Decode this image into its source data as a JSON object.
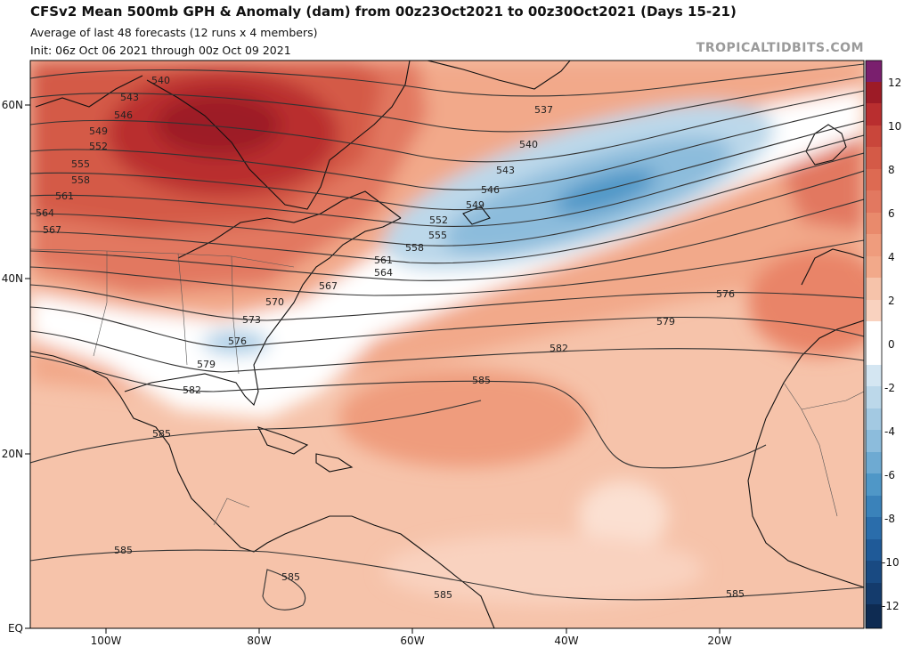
{
  "header": {
    "title": "CFSv2 Mean 500mb GPH & Anomaly (dam) from 00z23Oct2021 to 00z30Oct2021 (Days 15-21)",
    "line2": "Average of last 48 forecasts (12 runs x 4 members)",
    "line3": "Init: 06z Oct 06 2021 through 00z Oct 09 2021",
    "credit": "TROPICALTIDBITS.COM"
  },
  "axes": {
    "lat_labels": [
      "60N",
      "40N",
      "20N",
      "EQ"
    ],
    "lon_labels": [
      "100W",
      "80W",
      "60W",
      "40W",
      "20W"
    ]
  },
  "colorbar": {
    "ticks": [
      "12",
      "10",
      "8",
      "6",
      "4",
      "2",
      "0",
      "-2",
      "-4",
      "-6",
      "-8",
      "-10",
      "-12"
    ]
  },
  "contours": {
    "labels": [
      "537",
      "540",
      "540",
      "543",
      "543",
      "546",
      "546",
      "549",
      "549",
      "552",
      "552",
      "555",
      "555",
      "558",
      "558",
      "561",
      "561",
      "564",
      "564",
      "567",
      "567",
      "570",
      "573",
      "576",
      "576",
      "579",
      "579",
      "582",
      "582",
      "585",
      "585",
      "585",
      "585",
      "585",
      "585"
    ]
  },
  "colors": {
    "neg_anomaly": "#4f97c7",
    "pos_anomaly": "#c0392b",
    "land_outline": "#111111",
    "contour": "#333333"
  }
}
